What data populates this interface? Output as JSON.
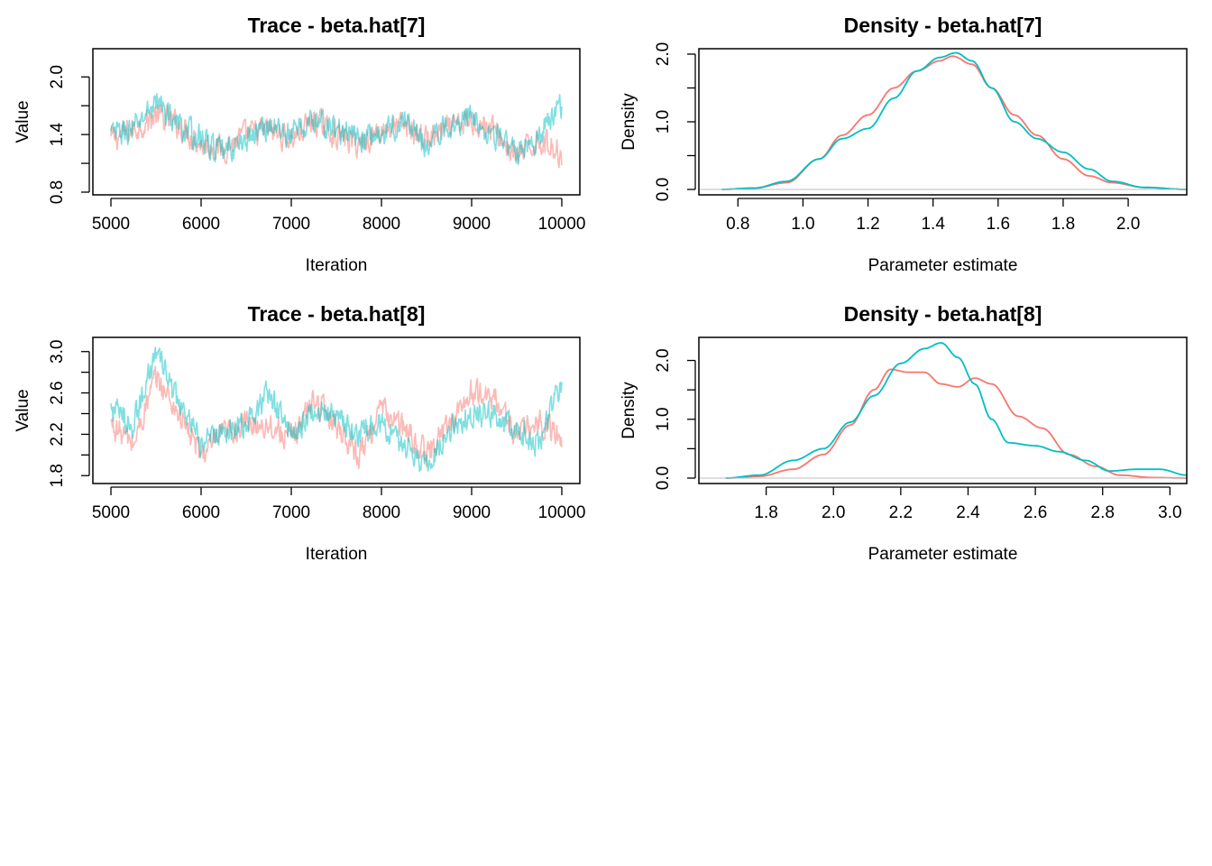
{
  "chart_data": [
    {
      "type": "line",
      "title": "Trace - beta.hat[7]",
      "xlabel": "Iteration",
      "ylabel": "Value",
      "xlim": [
        5000,
        10000
      ],
      "ylim": [
        0.8,
        2.2
      ],
      "xticks": [
        "5000",
        "6000",
        "7000",
        "8000",
        "9000",
        "10000"
      ],
      "yticks": [
        "0.8",
        "1.4",
        "2.0"
      ],
      "grid": false,
      "legend": "none",
      "series": [
        {
          "color": "#F8766D",
          "x": [
            5000,
            5250,
            5500,
            5750,
            6000,
            6250,
            6500,
            6750,
            7000,
            7250,
            7500,
            7750,
            8000,
            8250,
            8500,
            8750,
            9000,
            9250,
            9500,
            9750,
            10000
          ],
          "values": [
            1.35,
            1.45,
            1.6,
            1.5,
            1.3,
            1.25,
            1.4,
            1.45,
            1.35,
            1.55,
            1.4,
            1.3,
            1.45,
            1.5,
            1.35,
            1.45,
            1.55,
            1.45,
            1.15,
            1.35,
            1.2
          ]
        },
        {
          "color": "#00BFC4",
          "x": [
            5000,
            5250,
            5500,
            5750,
            6000,
            6250,
            6500,
            6750,
            7000,
            7250,
            7500,
            7750,
            8000,
            8250,
            8500,
            8750,
            9000,
            9250,
            9500,
            9750,
            10000
          ],
          "values": [
            1.4,
            1.45,
            1.75,
            1.5,
            1.35,
            1.2,
            1.35,
            1.5,
            1.4,
            1.55,
            1.45,
            1.35,
            1.4,
            1.55,
            1.3,
            1.5,
            1.6,
            1.4,
            1.2,
            1.4,
            1.7
          ]
        }
      ]
    },
    {
      "type": "line",
      "title": "Density - beta.hat[7]",
      "xlabel": "Parameter estimate",
      "ylabel": "Density",
      "xlim": [
        0.68,
        2.18
      ],
      "ylim": [
        0,
        2.0
      ],
      "xticks": [
        "0.8",
        "1.0",
        "1.2",
        "1.4",
        "1.6",
        "1.8",
        "2.0"
      ],
      "yticks": [
        "0.0",
        "1.0",
        "2.0"
      ],
      "grid": false,
      "legend": "none",
      "series": [
        {
          "color": "#F8766D",
          "x": [
            0.75,
            0.85,
            0.95,
            1.05,
            1.12,
            1.2,
            1.28,
            1.35,
            1.42,
            1.46,
            1.52,
            1.58,
            1.65,
            1.72,
            1.8,
            1.88,
            1.95,
            2.05,
            2.18
          ],
          "values": [
            0.0,
            0.02,
            0.1,
            0.45,
            0.8,
            1.1,
            1.5,
            1.75,
            1.9,
            1.97,
            1.85,
            1.5,
            1.1,
            0.8,
            0.45,
            0.2,
            0.1,
            0.03,
            0.0
          ]
        },
        {
          "color": "#00BFC4",
          "x": [
            0.75,
            0.85,
            0.95,
            1.05,
            1.12,
            1.2,
            1.28,
            1.35,
            1.42,
            1.47,
            1.52,
            1.58,
            1.65,
            1.72,
            1.8,
            1.88,
            1.95,
            2.05,
            2.18
          ],
          "values": [
            0.0,
            0.02,
            0.12,
            0.45,
            0.75,
            0.9,
            1.35,
            1.75,
            1.95,
            2.02,
            1.9,
            1.5,
            1.0,
            0.75,
            0.55,
            0.3,
            0.12,
            0.03,
            0.0
          ]
        }
      ]
    },
    {
      "type": "line",
      "title": "Trace - beta.hat[8]",
      "xlabel": "Iteration",
      "ylabel": "Value",
      "xlim": [
        5000,
        10000
      ],
      "ylim": [
        1.75,
        3.05
      ],
      "xticks": [
        "5000",
        "6000",
        "7000",
        "8000",
        "9000",
        "10000"
      ],
      "yticks": [
        "1.8",
        "2.2",
        "2.6",
        "3.0"
      ],
      "grid": false,
      "legend": "none",
      "series": [
        {
          "color": "#F8766D",
          "x": [
            5000,
            5250,
            5500,
            5750,
            6000,
            6250,
            6500,
            6750,
            7000,
            7250,
            7500,
            7750,
            8000,
            8250,
            8500,
            8750,
            9000,
            9250,
            9500,
            9750,
            10000
          ],
          "values": [
            2.3,
            2.1,
            2.75,
            2.4,
            2.0,
            2.2,
            2.3,
            2.3,
            2.15,
            2.55,
            2.3,
            2.0,
            2.45,
            2.25,
            2.0,
            2.3,
            2.6,
            2.55,
            2.2,
            2.3,
            2.2
          ]
        },
        {
          "color": "#00BFC4",
          "x": [
            5000,
            5250,
            5500,
            5750,
            6000,
            6250,
            6500,
            6750,
            7000,
            7250,
            7500,
            7750,
            8000,
            8250,
            8500,
            8750,
            9000,
            9250,
            9500,
            9750,
            10000
          ],
          "values": [
            2.45,
            2.3,
            3.0,
            2.5,
            2.1,
            2.25,
            2.3,
            2.6,
            2.2,
            2.45,
            2.35,
            2.2,
            2.3,
            2.1,
            1.9,
            2.25,
            2.4,
            2.4,
            2.25,
            2.1,
            2.7
          ]
        }
      ]
    },
    {
      "type": "line",
      "title": "Density - beta.hat[8]",
      "xlabel": "Parameter estimate",
      "ylabel": "Density",
      "xlim": [
        1.6,
        3.05
      ],
      "ylim": [
        0,
        2.3
      ],
      "xticks": [
        "1.8",
        "2.0",
        "2.2",
        "2.4",
        "2.6",
        "2.8",
        "3.0"
      ],
      "yticks": [
        "0.0",
        "1.0",
        "2.0"
      ],
      "grid": false,
      "legend": "none",
      "series": [
        {
          "color": "#F8766D",
          "x": [
            1.68,
            1.78,
            1.88,
            1.97,
            2.05,
            2.12,
            2.17,
            2.22,
            2.27,
            2.32,
            2.37,
            2.42,
            2.47,
            2.55,
            2.62,
            2.7,
            2.78,
            2.85,
            2.95,
            3.05
          ],
          "values": [
            0.0,
            0.03,
            0.15,
            0.4,
            0.9,
            1.5,
            1.85,
            1.8,
            1.8,
            1.6,
            1.55,
            1.7,
            1.6,
            1.05,
            0.85,
            0.4,
            0.2,
            0.05,
            0.01,
            0.0
          ]
        },
        {
          "color": "#00BFC4",
          "x": [
            1.68,
            1.78,
            1.88,
            1.97,
            2.05,
            2.12,
            2.2,
            2.27,
            2.32,
            2.37,
            2.42,
            2.47,
            2.52,
            2.6,
            2.67,
            2.75,
            2.82,
            2.9,
            2.97,
            3.05
          ],
          "values": [
            0.0,
            0.05,
            0.3,
            0.5,
            0.95,
            1.4,
            1.95,
            2.2,
            2.3,
            2.05,
            1.6,
            1.0,
            0.6,
            0.55,
            0.45,
            0.3,
            0.12,
            0.15,
            0.15,
            0.05
          ]
        }
      ]
    }
  ]
}
